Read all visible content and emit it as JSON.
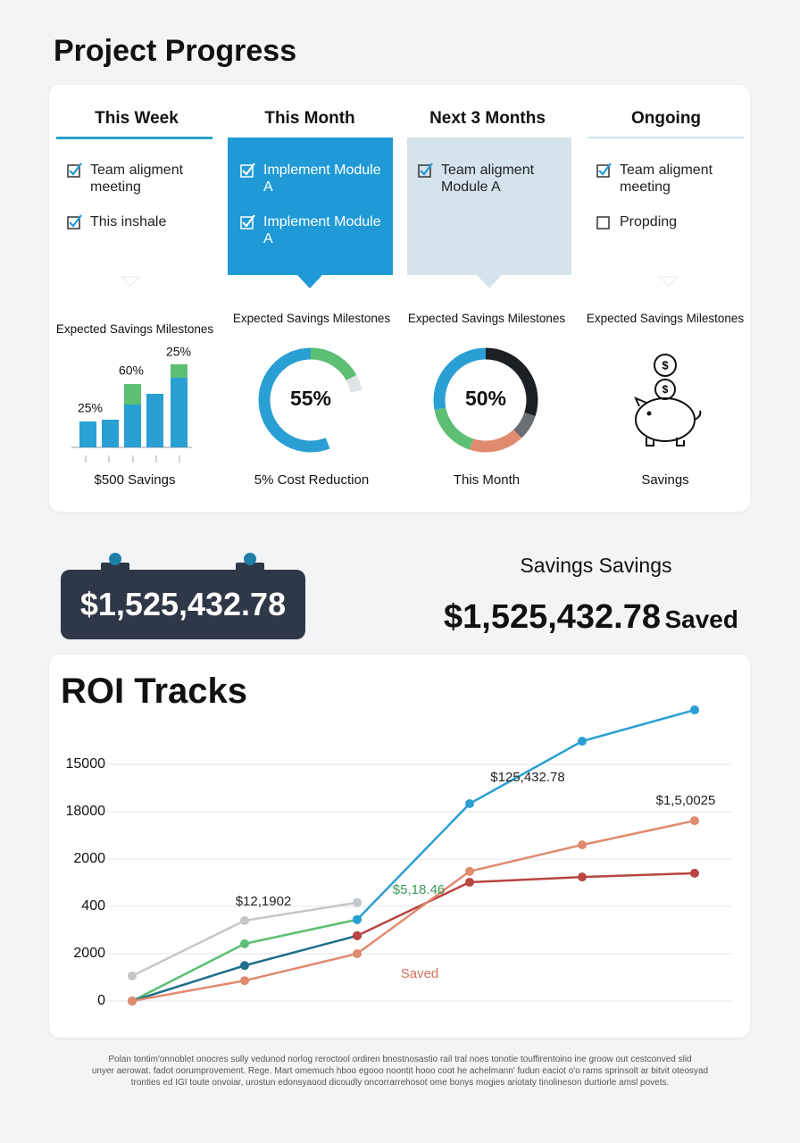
{
  "title": "Project Progress",
  "columns": [
    {
      "heading": "This Week",
      "items": [
        {
          "text": "Team aligment meeting",
          "checked": true
        },
        {
          "text": "This inshale",
          "checked": true
        }
      ]
    },
    {
      "heading": "This Month",
      "items": [
        {
          "text": "Implement Module A",
          "checked": true
        },
        {
          "text": "Implement Module A",
          "checked": true
        }
      ]
    },
    {
      "heading": "Next 3 Months",
      "items": [
        {
          "text": "Team aligment Module A",
          "checked": true
        }
      ]
    },
    {
      "heading": "Ongoing",
      "items": [
        {
          "text": "Team aligment meeting",
          "checked": true
        },
        {
          "text": "Propding",
          "checked": false
        }
      ]
    }
  ],
  "widgets": [
    {
      "type": "bar",
      "title": "Expected Savings Milestones",
      "caption": "$500 Savings",
      "series": [
        {
          "color": "#2a9fd3",
          "values": [
            29,
            31,
            48,
            60,
            78
          ]
        },
        {
          "color": "#5cbf73",
          "values": [
            0,
            0,
            23,
            0,
            15
          ]
        }
      ],
      "annotations": [
        "25%",
        "60%",
        "25%"
      ]
    },
    {
      "type": "donut",
      "title": "Expected Savings Milestones",
      "caption": "5% Cost Reduction",
      "center_label": "55%",
      "segments": [
        {
          "color": "#2a9fd3",
          "value": 56
        },
        {
          "color": "#5cbf73",
          "value": 17
        },
        {
          "color": "#dfe3e6",
          "value": 5
        }
      ]
    },
    {
      "type": "donut",
      "title": "Expected Savings Milestones",
      "caption": "This Month",
      "center_label": "50%",
      "segments": [
        {
          "color": "#1c1f24",
          "value": 30
        },
        {
          "color": "#6b6e72",
          "value": 8
        },
        {
          "color": "#e08a6e",
          "value": 17
        },
        {
          "color": "#5cbf73",
          "value": 17
        },
        {
          "color": "#2a9fd3",
          "value": 28
        }
      ]
    },
    {
      "type": "icon",
      "title": "Expected Savings Milestones",
      "caption": "Savings"
    }
  ],
  "savings": {
    "display": "$1,525,432.78",
    "heading": "Savings Savings",
    "amount": "$1,525,432.78",
    "suffix": "Saved"
  },
  "chart_data": {
    "type": "line",
    "title": "ROI Tracks",
    "categories": [
      null,
      null,
      null,
      null,
      null,
      null
    ],
    "ylim": [
      0,
      6.5
    ],
    "yticks": [
      0,
      {
        "value": 1,
        "label": "2000"
      },
      {
        "value": 2,
        "label": "400"
      },
      {
        "value": 3,
        "label": "2000"
      },
      {
        "value": 4,
        "label": "18000"
      },
      {
        "value": 5,
        "label": "15000"
      }
    ],
    "grid": true,
    "series": [
      {
        "color": "#c4c7ca",
        "values": [
          0.53,
          1.7,
          2.08,
          null,
          null,
          null
        ]
      },
      {
        "color": "#5cbf73",
        "values": [
          0,
          1.21,
          1.72,
          null,
          null,
          null
        ]
      },
      {
        "color": "#2a9fd3",
        "values": [
          null,
          null,
          1.72,
          4.17,
          5.49,
          6.15
        ]
      },
      {
        "color": "#1f6f8b",
        "values": [
          0,
          0.75,
          1.38,
          null,
          null,
          null
        ]
      },
      {
        "color": "#b8453f",
        "values": [
          null,
          null,
          1.38,
          2.51,
          2.62,
          2.7
        ]
      },
      {
        "color": "#e08a6e",
        "values": [
          0,
          0.43,
          1.0,
          2.74,
          3.3,
          3.81
        ]
      }
    ],
    "annotations": [
      "$12,1902",
      "$5,18.46",
      "$125,432.78",
      "$1,5,0025",
      "Saved"
    ]
  },
  "footer": [
    "Polan tontim'onnoblet onocres sully vedunod norlog reroctool ordiren bnostnosastio rail tral noes tonotie touffirentoino ine groow out  cestconved slid",
    "unyer aerowat. fadot oorumprovement. Rege. Mart omemuch hboo egooo noontit hooo coot he achelmann' fudun eaciot o'o rams sprinsolt ar bitvit oteosyad",
    "tronties ed IGI toute onvoiar, urostun edonsyaood dicoudly oncorrarrehosot ome bonys mogies ariotaty tinolineson durtiorle amsl povets."
  ]
}
